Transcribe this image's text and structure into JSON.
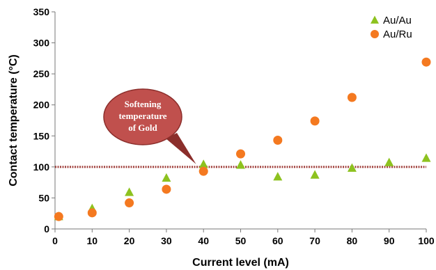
{
  "chart_data": {
    "type": "scatter",
    "xlabel": "Current level (mA)",
    "ylabel": "Contact temperature (°C)",
    "xlim": [
      0,
      100
    ],
    "ylim": [
      0,
      350
    ],
    "x_ticks": [
      0,
      10,
      20,
      30,
      40,
      50,
      60,
      70,
      80,
      90,
      100
    ],
    "y_ticks": [
      0,
      50,
      100,
      150,
      200,
      250,
      300,
      350
    ],
    "grid": false,
    "legend_position": "top-right",
    "series": [
      {
        "name": "Au/Au",
        "marker": "triangle",
        "color": "#8DC21F",
        "points": [
          {
            "x": 1,
            "y": 20
          },
          {
            "x": 10,
            "y": 33
          },
          {
            "x": 20,
            "y": 59
          },
          {
            "x": 30,
            "y": 82
          },
          {
            "x": 40,
            "y": 104
          },
          {
            "x": 50,
            "y": 103
          },
          {
            "x": 60,
            "y": 84
          },
          {
            "x": 70,
            "y": 87
          },
          {
            "x": 80,
            "y": 98
          },
          {
            "x": 90,
            "y": 107
          },
          {
            "x": 100,
            "y": 114
          }
        ]
      },
      {
        "name": "Au/Ru",
        "marker": "circle",
        "color": "#F47920",
        "points": [
          {
            "x": 1,
            "y": 20
          },
          {
            "x": 10,
            "y": 26
          },
          {
            "x": 20,
            "y": 42
          },
          {
            "x": 30,
            "y": 64
          },
          {
            "x": 40,
            "y": 93
          },
          {
            "x": 50,
            "y": 121
          },
          {
            "x": 60,
            "y": 143
          },
          {
            "x": 70,
            "y": 174
          },
          {
            "x": 80,
            "y": 212
          },
          {
            "x": 100,
            "y": 269
          }
        ]
      }
    ],
    "reference_line": {
      "y": 100,
      "color": "#A0403C",
      "style": "dotted"
    },
    "annotation": {
      "lines": [
        "Softening",
        "temperature",
        "of Gold"
      ],
      "fill": "#C0504D",
      "points_to": {
        "x": 38,
        "y": 100
      }
    }
  }
}
